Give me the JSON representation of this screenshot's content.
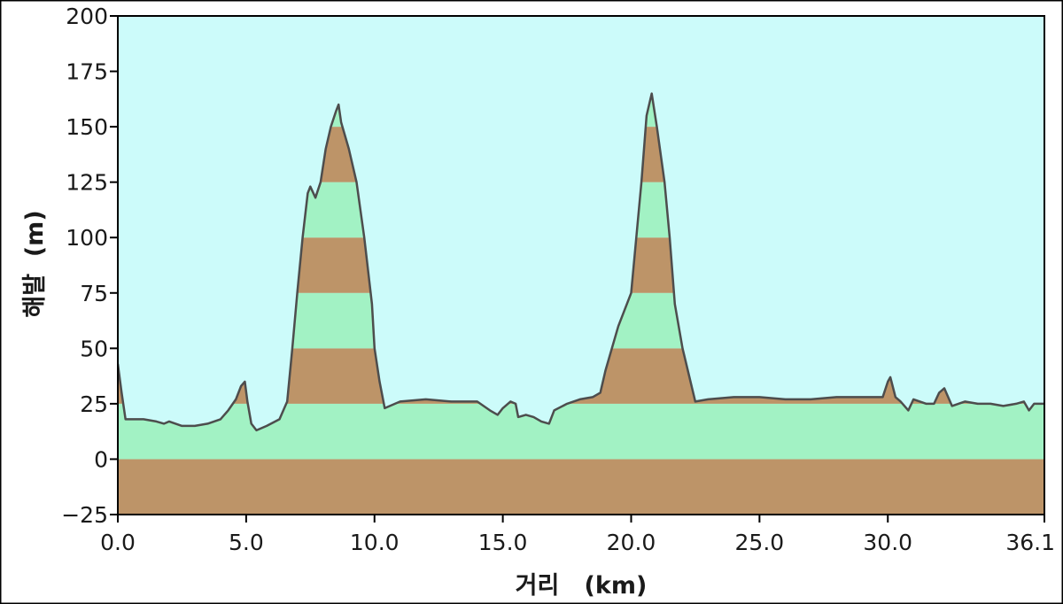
{
  "chart_data": {
    "type": "area",
    "title": "",
    "xlabel": "거리   (km)",
    "ylabel": "해발  (m)",
    "xlim": [
      0.0,
      36.1
    ],
    "ylim": [
      -25,
      200
    ],
    "x_ticks": [
      0.0,
      5.0,
      10.0,
      15.0,
      20.0,
      25.0,
      30.0,
      36.1
    ],
    "x_tick_labels": [
      "0.0",
      "5.0",
      "10.0",
      "15.0",
      "20.0",
      "25.0",
      "30.0",
      "36.1"
    ],
    "y_ticks": [
      200,
      175,
      150,
      125,
      100,
      75,
      50,
      25,
      0,
      -25
    ],
    "y_tick_labels": [
      "200",
      "175",
      "150",
      "125",
      "100",
      "75",
      "50",
      "25",
      "0",
      "−25"
    ],
    "band_size": 25,
    "colors": {
      "sky": "#ccfbfa",
      "band_green": "#a2f2c4",
      "band_brown": "#bd9468",
      "profile_line": "#4d4d4d",
      "axis": "#000000"
    },
    "series": [
      {
        "x": [
          0.0,
          0.15,
          0.3,
          0.5,
          1.0,
          1.5,
          1.8,
          2.0,
          2.5,
          3.0,
          3.5,
          4.0,
          4.3,
          4.6,
          4.8,
          4.95,
          5.05,
          5.2,
          5.4,
          5.8,
          6.3,
          6.6,
          6.8,
          7.0,
          7.2,
          7.4,
          7.5,
          7.7,
          7.9,
          8.1,
          8.3,
          8.5,
          8.6,
          8.7,
          8.8,
          9.0,
          9.3,
          9.6,
          9.9,
          10.0,
          10.2,
          10.4,
          10.6,
          11.0,
          12.0,
          13.0,
          14.0,
          14.5,
          14.8,
          15.0,
          15.3,
          15.5,
          15.6,
          15.9,
          16.2,
          16.5,
          16.8,
          17.0,
          17.5,
          18.0,
          18.5,
          18.8,
          19.0,
          19.5,
          20.0,
          20.2,
          20.4,
          20.6,
          20.8,
          21.0,
          21.3,
          21.5,
          21.7,
          22.0,
          22.5,
          23.0,
          24.0,
          25.0,
          26.0,
          27.0,
          28.0,
          29.0,
          29.8,
          30.0,
          30.1,
          30.3,
          30.5,
          30.8,
          31.0,
          31.5,
          31.8,
          32.0,
          32.2,
          32.5,
          33.0,
          33.5,
          34.0,
          34.5,
          35.0,
          35.3,
          35.5,
          35.7,
          36.1
        ],
        "values": [
          43,
          30,
          18,
          18,
          18,
          17,
          16,
          17,
          15,
          15,
          16,
          18,
          22,
          27,
          33,
          35,
          26,
          16,
          13,
          15,
          18,
          26,
          50,
          76,
          100,
          120,
          123,
          118,
          125,
          140,
          150,
          157,
          160,
          152,
          148,
          140,
          125,
          100,
          70,
          50,
          35,
          23,
          24,
          26,
          27,
          26,
          26,
          22,
          20,
          23,
          26,
          25,
          19,
          20,
          19,
          17,
          16,
          22,
          25,
          27,
          28,
          30,
          40,
          60,
          75,
          100,
          125,
          155,
          165,
          150,
          125,
          100,
          70,
          50,
          26,
          27,
          28,
          28,
          27,
          27,
          28,
          28,
          28,
          35,
          37,
          28,
          26,
          22,
          27,
          25,
          25,
          30,
          32,
          24,
          26,
          25,
          25,
          24,
          25,
          26,
          22,
          25,
          25
        ]
      }
    ]
  }
}
